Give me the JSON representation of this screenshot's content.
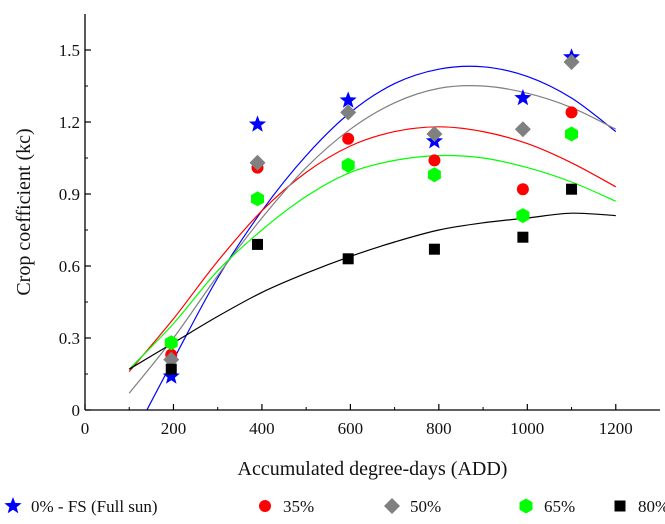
{
  "chart_data": {
    "type": "scatter",
    "xlabel": "Accumulated degree-days (ADD)",
    "ylabel": "Crop coefficient (kc)",
    "xlim": [
      0,
      1300
    ],
    "ylim": [
      0,
      1.65
    ],
    "xticks": [
      0,
      200,
      400,
      600,
      800,
      1000,
      1200
    ],
    "yticks": [
      0,
      0.3,
      0.6,
      0.9,
      1.2,
      1.5
    ],
    "xtick_labels": [
      "0",
      "200",
      "400",
      "600",
      "800",
      "1000",
      "1200"
    ],
    "ytick_labels": [
      "0",
      "0.3",
      "0.6",
      "0.9",
      "1.2",
      "1.5"
    ],
    "grid": false,
    "legend_position": "bottom",
    "series": [
      {
        "name": "0% - FS (Full sun)",
        "marker": "star",
        "color": "#0000ff",
        "points": [
          [
            195,
            0.14
          ],
          [
            390,
            1.19
          ],
          [
            595,
            1.29
          ],
          [
            790,
            1.12
          ],
          [
            990,
            1.3
          ],
          [
            1100,
            1.47
          ]
        ],
        "fit": [
          [
            140,
            0.0
          ],
          [
            200,
            0.21
          ],
          [
            300,
            0.55
          ],
          [
            400,
            0.83
          ],
          [
            500,
            1.06
          ],
          [
            600,
            1.24
          ],
          [
            700,
            1.36
          ],
          [
            800,
            1.42
          ],
          [
            900,
            1.43
          ],
          [
            1000,
            1.39
          ],
          [
            1100,
            1.3
          ],
          [
            1200,
            1.16
          ]
        ]
      },
      {
        "name": "35%",
        "marker": "circle",
        "color": "#ff0000",
        "points": [
          [
            195,
            0.23
          ],
          [
            390,
            1.01
          ],
          [
            595,
            1.13
          ],
          [
            790,
            1.04
          ],
          [
            990,
            0.92
          ],
          [
            1100,
            1.24
          ]
        ],
        "fit": [
          [
            100,
            0.16
          ],
          [
            200,
            0.38
          ],
          [
            300,
            0.62
          ],
          [
            400,
            0.83
          ],
          [
            500,
            0.99
          ],
          [
            600,
            1.1
          ],
          [
            700,
            1.16
          ],
          [
            800,
            1.18
          ],
          [
            900,
            1.16
          ],
          [
            1000,
            1.11
          ],
          [
            1100,
            1.03
          ],
          [
            1200,
            0.93
          ]
        ]
      },
      {
        "name": "50%",
        "marker": "diamond",
        "color": "#808080",
        "points": [
          [
            195,
            0.21
          ],
          [
            390,
            1.03
          ],
          [
            595,
            1.24
          ],
          [
            790,
            1.15
          ],
          [
            990,
            1.17
          ],
          [
            1100,
            1.45
          ]
        ],
        "fit": [
          [
            100,
            0.07
          ],
          [
            200,
            0.3
          ],
          [
            300,
            0.56
          ],
          [
            400,
            0.8
          ],
          [
            500,
            1.01
          ],
          [
            600,
            1.17
          ],
          [
            700,
            1.28
          ],
          [
            800,
            1.34
          ],
          [
            900,
            1.35
          ],
          [
            1000,
            1.32
          ],
          [
            1100,
            1.26
          ],
          [
            1200,
            1.17
          ]
        ]
      },
      {
        "name": "65%",
        "marker": "hexagon",
        "color": "#00ff00",
        "points": [
          [
            195,
            0.28
          ],
          [
            390,
            0.88
          ],
          [
            595,
            1.02
          ],
          [
            790,
            0.98
          ],
          [
            990,
            0.81
          ],
          [
            1100,
            1.15
          ]
        ],
        "fit": [
          [
            100,
            0.17
          ],
          [
            200,
            0.36
          ],
          [
            300,
            0.58
          ],
          [
            400,
            0.75
          ],
          [
            500,
            0.89
          ],
          [
            600,
            0.99
          ],
          [
            700,
            1.04
          ],
          [
            800,
            1.06
          ],
          [
            900,
            1.05
          ],
          [
            1000,
            1.01
          ],
          [
            1100,
            0.95
          ],
          [
            1200,
            0.87
          ]
        ]
      },
      {
        "name": "80%",
        "marker": "square",
        "color": "#000000",
        "points": [
          [
            195,
            0.17
          ],
          [
            390,
            0.69
          ],
          [
            595,
            0.63
          ],
          [
            790,
            0.67
          ],
          [
            990,
            0.72
          ],
          [
            1100,
            0.92
          ]
        ],
        "fit": [
          [
            100,
            0.17
          ],
          [
            200,
            0.28
          ],
          [
            300,
            0.39
          ],
          [
            400,
            0.49
          ],
          [
            500,
            0.57
          ],
          [
            600,
            0.64
          ],
          [
            700,
            0.7
          ],
          [
            800,
            0.75
          ],
          [
            900,
            0.78
          ],
          [
            1000,
            0.8
          ],
          [
            1100,
            0.82
          ],
          [
            1200,
            0.81
          ]
        ]
      }
    ]
  }
}
